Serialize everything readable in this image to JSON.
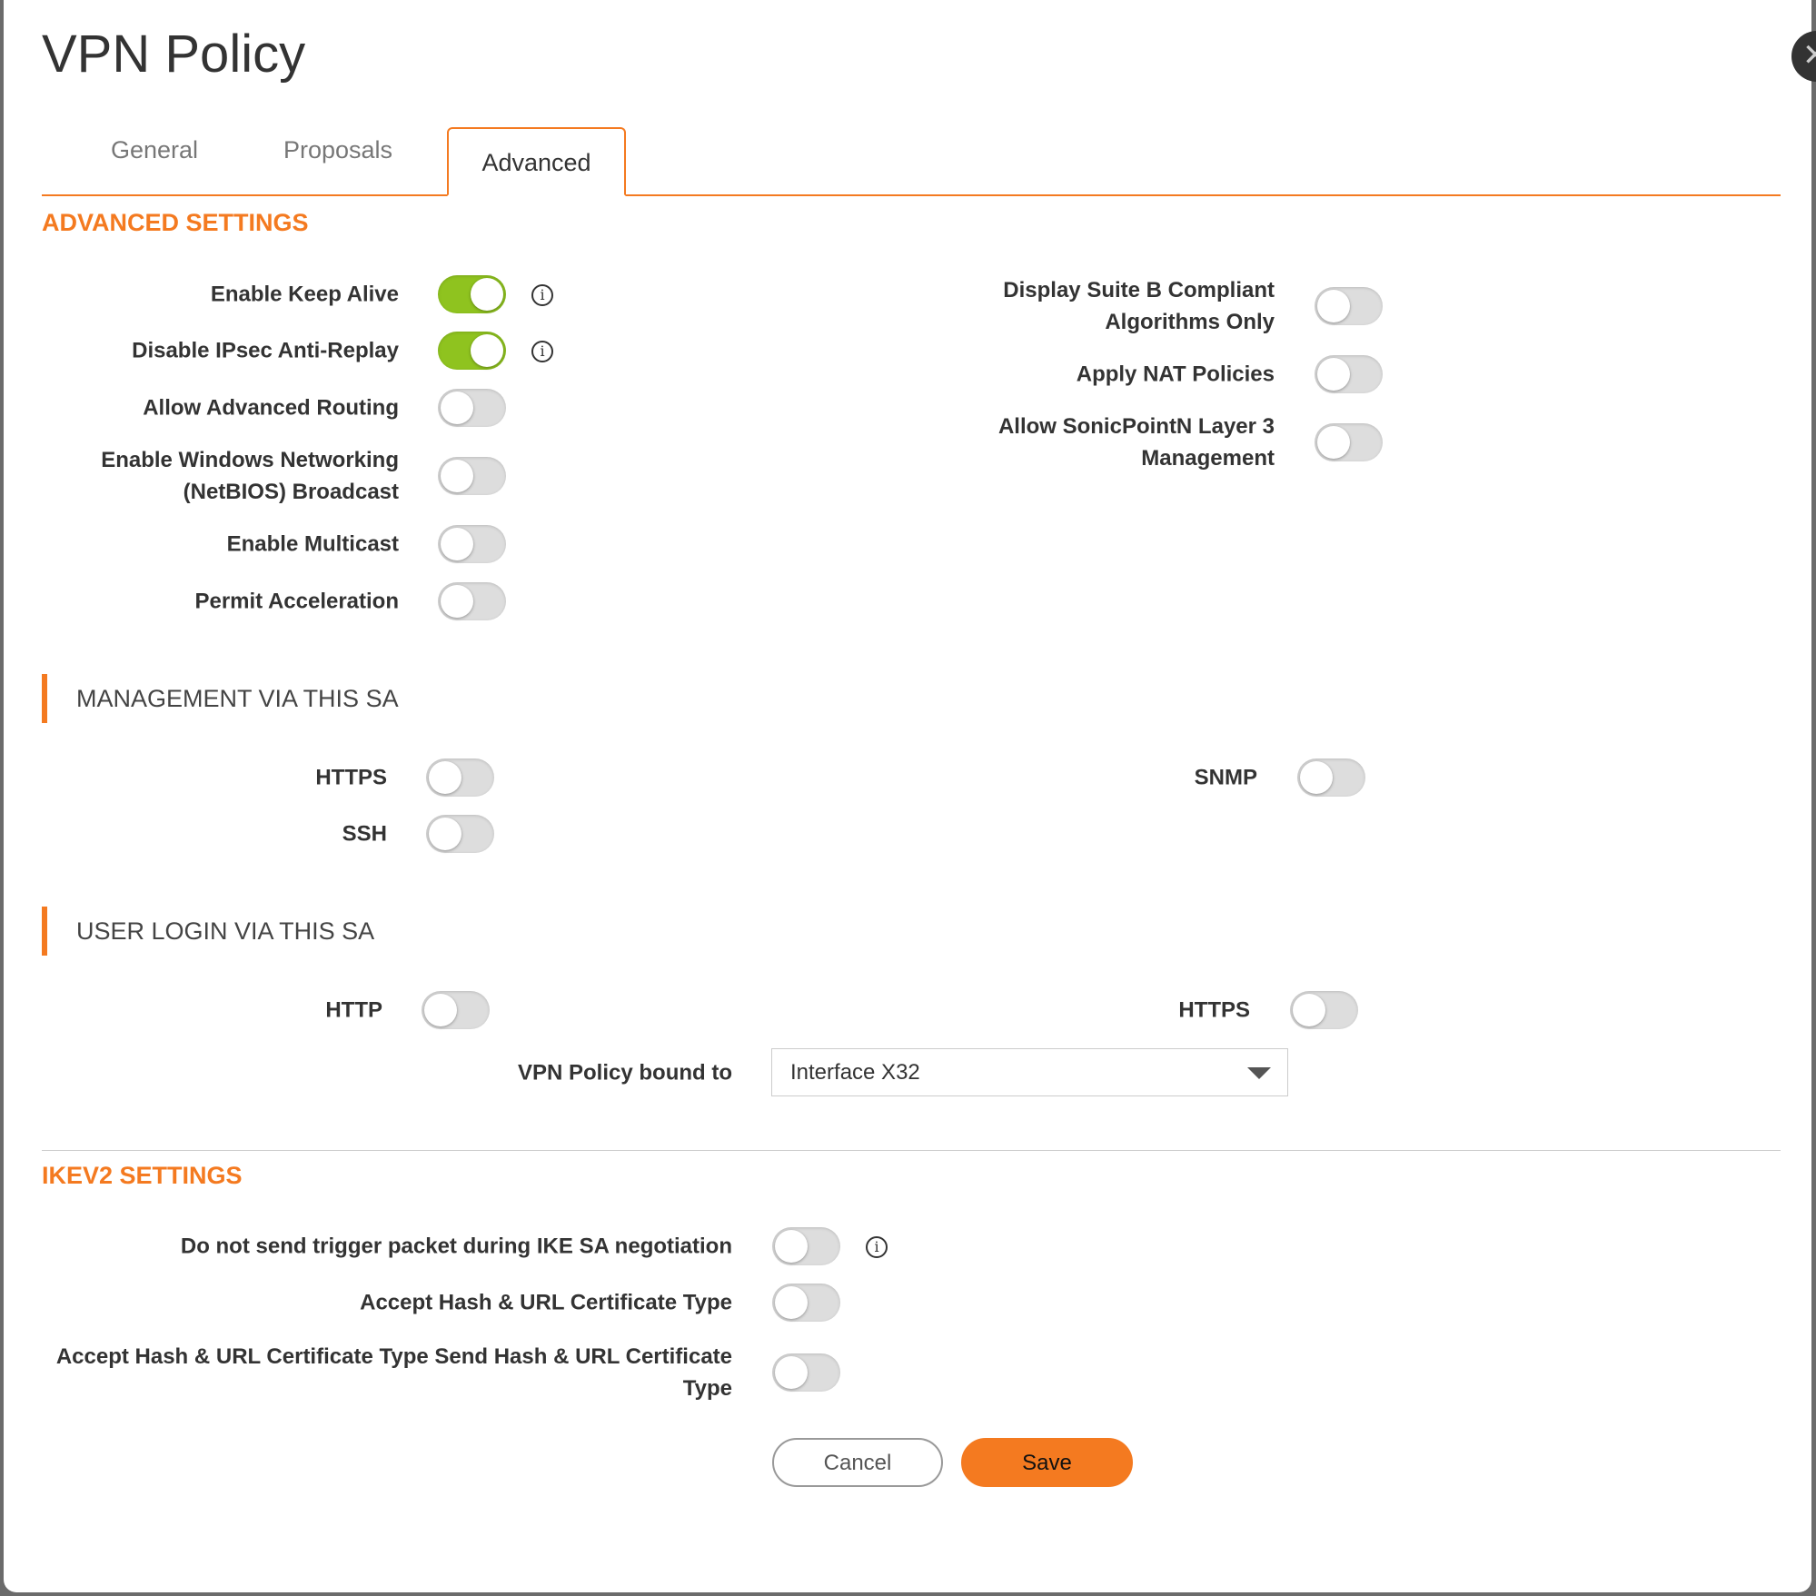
{
  "title": "VPN Policy",
  "tabs": [
    {
      "label": "General"
    },
    {
      "label": "Proposals"
    },
    {
      "label": "Advanced",
      "active": true
    }
  ],
  "advanced": {
    "heading": "ADVANCED SETTINGS",
    "left": [
      {
        "label": "Enable Keep Alive",
        "on": true,
        "info": true
      },
      {
        "label": "Disable IPsec Anti-Replay",
        "on": true,
        "info": true
      },
      {
        "label": "Allow Advanced Routing",
        "on": false
      },
      {
        "label": "Enable Windows Networking (NetBIOS) Broadcast",
        "on": false
      },
      {
        "label": "Enable Multicast",
        "on": false
      },
      {
        "label": "Permit Acceleration",
        "on": false
      }
    ],
    "right": [
      {
        "label": "Display Suite B Compliant Algorithms Only",
        "on": false
      },
      {
        "label": "Apply NAT Policies",
        "on": false
      },
      {
        "label": "Allow SonicPointN Layer 3 Management",
        "on": false
      }
    ]
  },
  "management": {
    "heading": "MANAGEMENT VIA THIS SA",
    "items": [
      {
        "label": "HTTPS",
        "on": false
      },
      {
        "label": "SSH",
        "on": false
      },
      {
        "label": "SNMP",
        "on": false
      }
    ]
  },
  "user_login": {
    "heading": "USER LOGIN VIA THIS SA",
    "items": [
      {
        "label": "HTTP",
        "on": false
      },
      {
        "label": "HTTPS",
        "on": false
      }
    ],
    "bound_label": "VPN Policy bound to",
    "bound_value": "Interface X32"
  },
  "ikev2": {
    "heading": "IKEV2 SETTINGS",
    "items": [
      {
        "label": "Do not send trigger packet during IKE SA negotiation",
        "on": false,
        "info": true
      },
      {
        "label": "Accept Hash & URL Certificate Type",
        "on": false
      },
      {
        "label": "Accept Hash & URL Certificate Type Send Hash & URL Certificate Type",
        "on": false
      }
    ]
  },
  "buttons": {
    "cancel": "Cancel",
    "save": "Save"
  },
  "colors": {
    "accent": "#f47a20",
    "toggle_on": "#8fc31f"
  }
}
